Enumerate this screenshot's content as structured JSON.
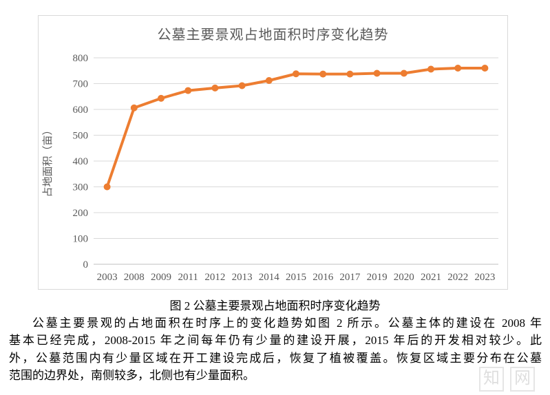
{
  "chart": {
    "title": "公墓主要景观占地面积时序变化趋势",
    "colors": {
      "line": "#ED7D31",
      "grid": "#D9D9D9",
      "axis_line": "#BFBFBF",
      "axis_text": "#595959",
      "title_text": "#595959",
      "border": "#D9D9D9"
    }
  },
  "chart_data": {
    "type": "line",
    "title": "公墓主要景观占地面积时序变化趋势",
    "xlabel": "",
    "ylabel": "占地面积（亩）",
    "categories": [
      "2003",
      "2008",
      "2009",
      "2011",
      "2012",
      "2013",
      "2014",
      "2015",
      "2016",
      "2017",
      "2019",
      "2020",
      "2021",
      "2022",
      "2023"
    ],
    "values": [
      300,
      606,
      643,
      673,
      683,
      692,
      712,
      738,
      737,
      737,
      740,
      740,
      756,
      760,
      760
    ],
    "ylim": [
      0,
      800
    ],
    "ytick_step": 100,
    "grid": true,
    "legend": false,
    "marker": "circle"
  },
  "figure": {
    "caption": "图 2 公墓主要景观占地面积时序变化趋势"
  },
  "article": {
    "lines": [
      "公墓主要景观的占地面积在时序上的变化趋势如图 2 所示。公墓主体的建设在 2008 年",
      "基本已经完成，2008-2015 年之间每年仍有少量的建设开展，2015 年后的开发相对较少。此",
      "外，公墓范围内有少量区域在开工建设完成后，恢复了植被覆盖。恢复区域主要分布在公墓",
      "范围的边界处，南侧较多，北侧也有少量面积。"
    ]
  },
  "watermark": {
    "char1": "知",
    "char2": "网"
  }
}
